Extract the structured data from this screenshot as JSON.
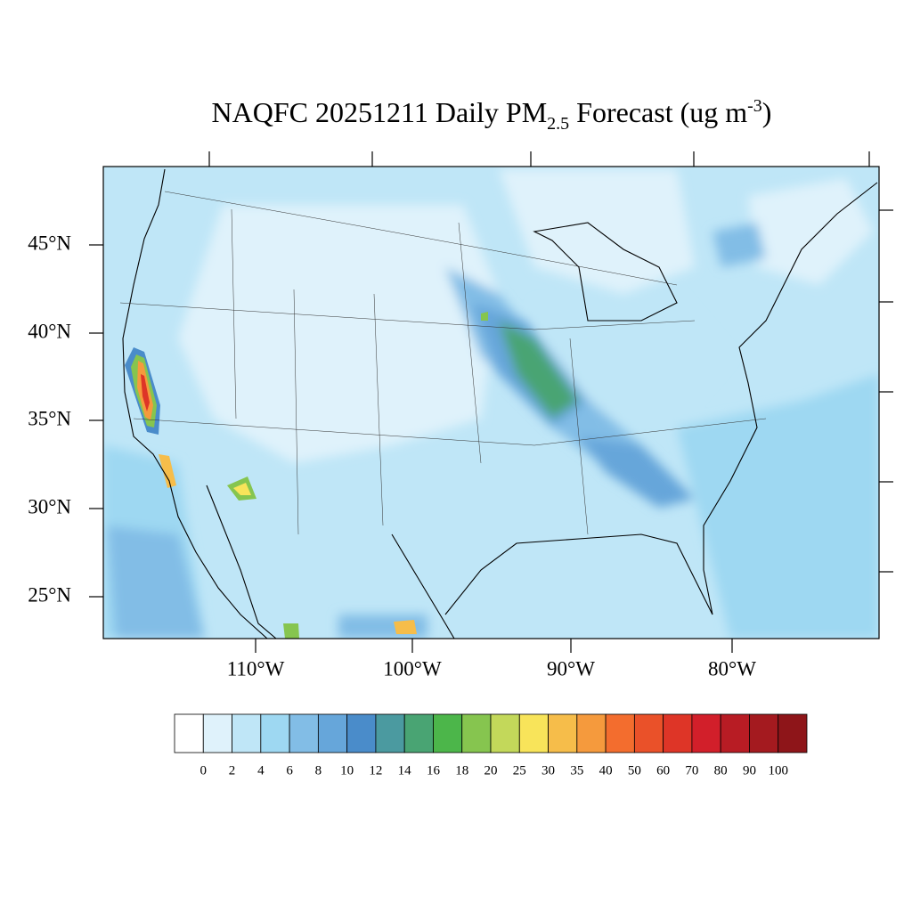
{
  "title": {
    "main": "NAQFC 20251211 Daily PM",
    "sub": "2.5",
    "rest": " Forecast (ug m",
    "sup": "-3",
    "end": ")"
  },
  "lat_labels": [
    "45°N",
    "40°N",
    "35°N",
    "30°N",
    "25°N"
  ],
  "lon_labels": [
    "110°W",
    "100°W",
    "90°W",
    "80°W"
  ],
  "colorbar": {
    "labels": [
      "0",
      "2",
      "4",
      "6",
      "8",
      "10",
      "12",
      "14",
      "16",
      "18",
      "20",
      "25",
      "30",
      "35",
      "40",
      "50",
      "60",
      "70",
      "80",
      "90",
      "100"
    ],
    "colors": [
      "#ffffff",
      "#dff2fb",
      "#bfe6f7",
      "#9ed8f2",
      "#82bde6",
      "#66a6da",
      "#4a8cca",
      "#4b9aa0",
      "#49a473",
      "#4cb64a",
      "#86c54f",
      "#c3d85a",
      "#f8e45a",
      "#f6bd4a",
      "#f59a3d",
      "#f36d2e",
      "#ea5129",
      "#de3527",
      "#d21f2a",
      "#b81c24",
      "#a41a1f",
      "#8e1519"
    ]
  }
}
